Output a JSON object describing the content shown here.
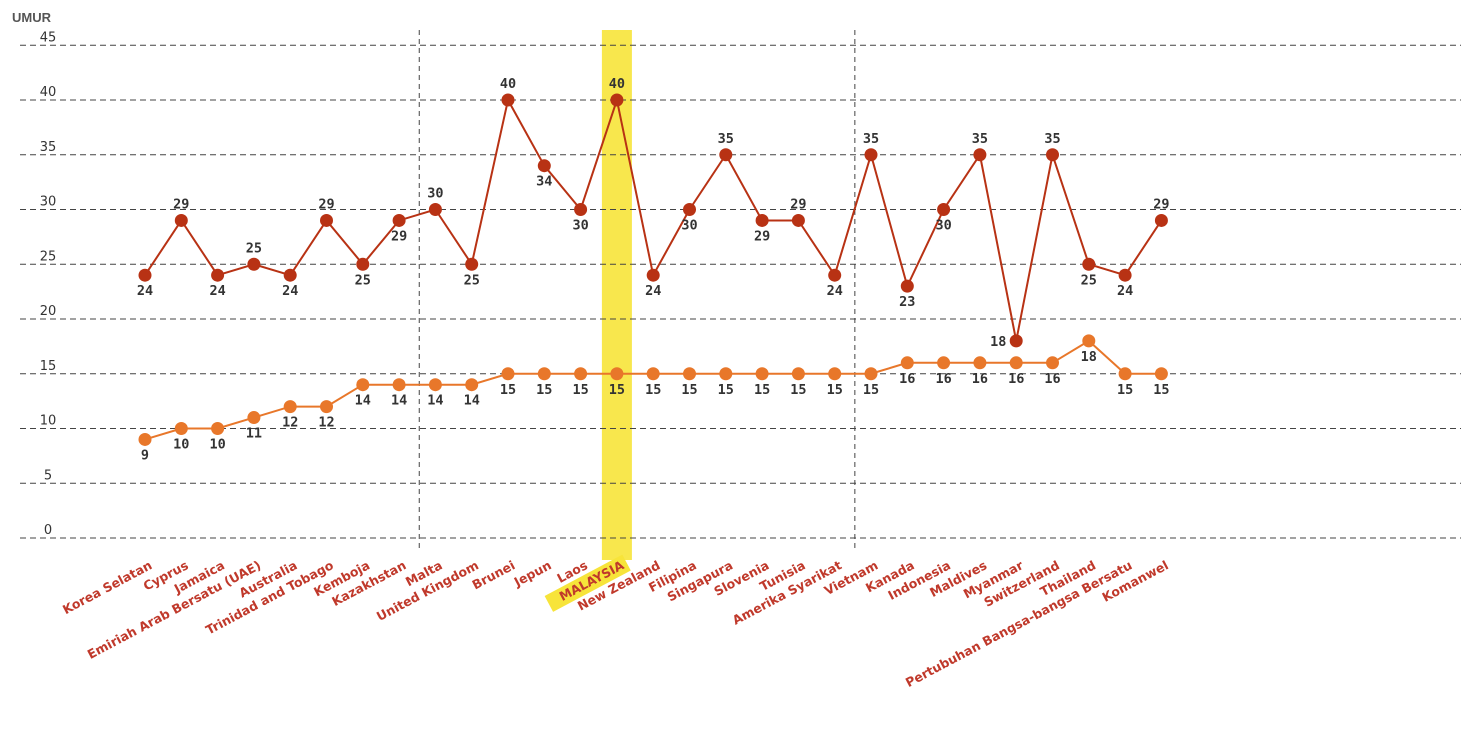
{
  "chart_data": {
    "type": "line",
    "ylabel": "UMUR",
    "ylim": [
      0,
      45
    ],
    "yticks": [
      "0",
      "5",
      "10",
      "15",
      "20",
      "25",
      "30",
      "35",
      "40",
      "45"
    ],
    "highlight_category": "MALAYSIA",
    "highlight_color": "#f7e43a",
    "grid": true,
    "categories": [
      "Korea Selatan",
      "Cyprus",
      "Jamaica",
      "Emiriah Arab Bersatu (UAE)",
      "Australia",
      "Trinidad and Tobago",
      "Kemboja",
      "Kazakhstan",
      "Malta",
      "United Kingdom",
      "Brunei",
      "Jepun",
      "Laos",
      "MALAYSIA",
      "New Zealand",
      "Filipina",
      "Singapura",
      "Slovenia",
      "Tunisia",
      "Amerika Syarikat",
      "Vietnam",
      "Kanada",
      "Indonesia",
      "Maldives",
      "Myanmar",
      "Switzerland",
      "Thailand",
      "Pertubuhan Bangsa-bangsa Bersatu",
      "Komanwel"
    ],
    "series": [
      {
        "color": "#b83214",
        "values": [
          24,
          29,
          24,
          25,
          24,
          29,
          25,
          29,
          30,
          25,
          40,
          34,
          30,
          40,
          24,
          30,
          35,
          29,
          29,
          24,
          35,
          23,
          30,
          35,
          18,
          35,
          25,
          24,
          29
        ],
        "labels": [
          "24",
          "29",
          "24",
          "25",
          "24",
          "29",
          "25",
          "29",
          "30",
          "25",
          "40",
          "34",
          "30",
          "40",
          "24",
          "30",
          "35",
          "29",
          "29",
          "24",
          "35",
          "23",
          "30",
          "35",
          "18",
          "35",
          "25",
          "24",
          "29"
        ]
      },
      {
        "color": "#e8772a",
        "values": [
          9,
          10,
          10,
          11,
          12,
          12,
          14,
          14,
          14,
          14,
          15,
          15,
          15,
          15,
          15,
          15,
          15,
          15,
          15,
          15,
          15,
          16,
          16,
          16,
          16,
          16,
          18,
          15,
          15
        ],
        "labels": [
          "9",
          "10",
          "10",
          "11",
          "12",
          "12",
          "14",
          "14",
          "14",
          "14",
          "15",
          "15",
          "15",
          "15",
          "15",
          "15",
          "15",
          "15",
          "15",
          "15",
          "15",
          "16",
          "16",
          "16",
          "16",
          "16",
          "18",
          "15",
          "15"
        ]
      }
    ],
    "section_dividers_after": [
      "Kazakhstan",
      "Amerika Syarikat"
    ]
  }
}
